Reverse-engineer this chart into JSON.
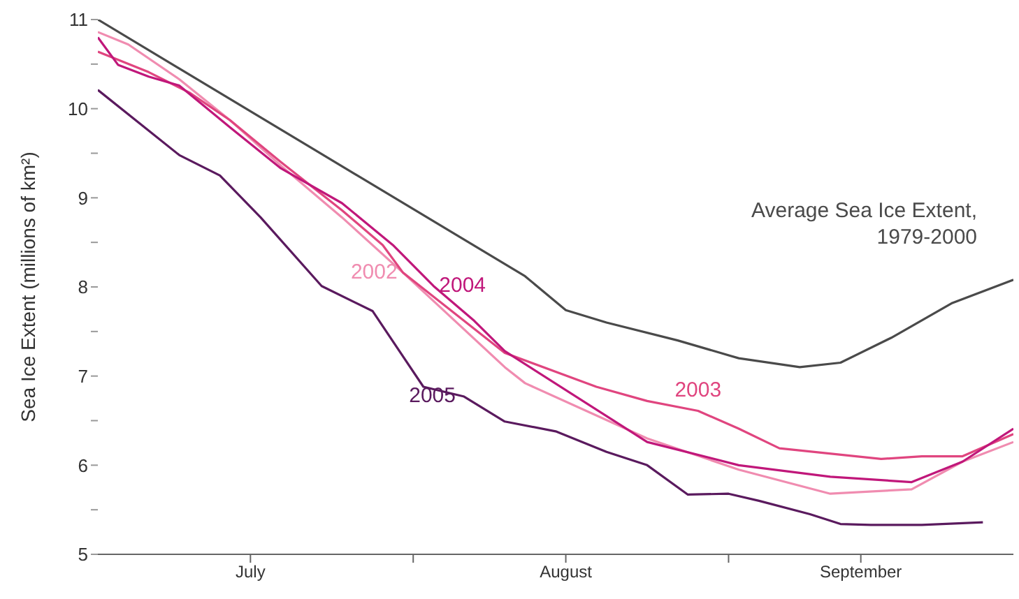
{
  "chart_data": {
    "type": "line",
    "ylabel": "Sea Ice Extent (millions of km²)",
    "xlim": [
      "--07-01",
      "--09-29"
    ],
    "ylim": [
      5,
      11
    ],
    "xticks": [
      {
        "value": "--07-16",
        "label": "July"
      },
      {
        "value": "--08-01",
        "label": null
      },
      {
        "value": "--08-16",
        "label": "August"
      },
      {
        "value": "--09-01",
        "label": null
      },
      {
        "value": "--09-14",
        "label": "September"
      }
    ],
    "yticks": [
      5,
      {
        "value": 5.5,
        "label": null
      },
      6,
      {
        "value": 6.5,
        "label": null
      },
      7,
      {
        "value": 7.5,
        "label": null
      },
      8,
      {
        "value": 8.5,
        "label": null
      },
      9,
      {
        "value": 9.5,
        "label": null
      },
      10,
      {
        "value": 10.5,
        "label": null
      },
      11
    ],
    "marker": "none",
    "line_style": "solid",
    "series": [
      {
        "name": "Average Sea Ice Extent, 1979-2000",
        "color": "#4a4a4a",
        "x": [
          "--07-01",
          "--07-22",
          "--08-12",
          "--08-16",
          "--08-20",
          "--08-27",
          "--09-02",
          "--09-08",
          "--09-12",
          "--09-17",
          "--09-23",
          "--09-29"
        ],
        "values": [
          11.0,
          9.56,
          8.12,
          7.74,
          7.6,
          7.4,
          7.2,
          7.1,
          7.15,
          7.43,
          7.82,
          8.08
        ]
      },
      {
        "name": "2002",
        "color": "#f08cb0",
        "x": [
          "--07-01",
          "--07-04",
          "--07-09",
          "--07-14",
          "--07-19",
          "--07-25",
          "--07-31",
          "--08-10",
          "--08-12",
          "--08-24",
          "--09-02",
          "--09-11",
          "--09-19",
          "--09-24",
          "--09-29"
        ],
        "values": [
          10.86,
          10.72,
          10.33,
          9.87,
          9.36,
          8.78,
          8.16,
          7.1,
          6.92,
          6.3,
          5.95,
          5.68,
          5.73,
          6.04,
          6.26
        ]
      },
      {
        "name": "2003",
        "color": "#e0457f",
        "x": [
          "--07-01",
          "--07-06",
          "--07-10",
          "--07-14",
          "--07-19",
          "--07-25",
          "--07-29",
          "--07-31",
          "--08-10",
          "--08-19",
          "--08-24",
          "--08-29",
          "--09-02",
          "--09-06",
          "--09-16",
          "--09-20",
          "--09-24",
          "--09-29"
        ],
        "values": [
          10.64,
          10.41,
          10.18,
          9.87,
          9.4,
          8.86,
          8.47,
          8.16,
          7.26,
          6.88,
          6.72,
          6.61,
          6.41,
          6.19,
          6.07,
          6.1,
          6.1,
          6.35
        ]
      },
      {
        "name": "2004",
        "color": "#c0177a",
        "x": [
          "--07-01",
          "--07-03",
          "--07-06",
          "--07-09",
          "--07-14",
          "--07-19",
          "--07-25",
          "--07-30",
          "--08-03",
          "--08-07",
          "--08-10",
          "--08-24",
          "--09-02",
          "--09-11",
          "--09-19",
          "--09-24",
          "--09-29"
        ],
        "values": [
          10.8,
          10.49,
          10.36,
          10.26,
          9.79,
          9.33,
          8.94,
          8.47,
          8.01,
          7.62,
          7.28,
          6.26,
          6.0,
          5.87,
          5.81,
          6.04,
          6.41
        ]
      },
      {
        "name": "2005",
        "color": "#5a1a5e",
        "x": [
          "--07-01",
          "--07-09",
          "--07-13",
          "--07-17",
          "--07-23",
          "--07-28",
          "--08-02",
          "--08-06",
          "--08-10",
          "--08-15",
          "--08-20",
          "--08-24",
          "--08-28",
          "--09-01",
          "--09-04",
          "--09-09",
          "--09-12",
          "--09-15",
          "--09-20",
          "--09-26"
        ],
        "values": [
          10.21,
          9.48,
          9.25,
          8.78,
          8.01,
          7.73,
          6.88,
          6.77,
          6.49,
          6.38,
          6.15,
          6.0,
          5.67,
          5.68,
          5.6,
          5.45,
          5.34,
          5.33,
          5.33,
          5.36
        ]
      }
    ]
  }
}
